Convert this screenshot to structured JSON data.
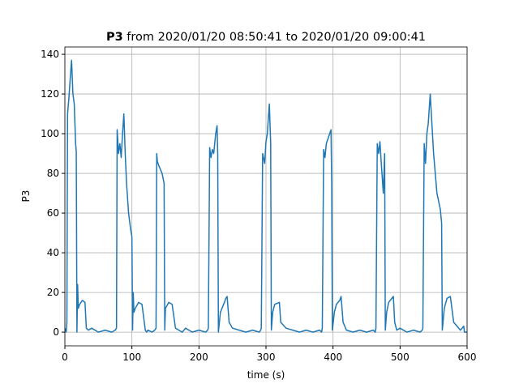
{
  "chart_data": {
    "type": "line",
    "title_label": "P3",
    "title": "from 2020/01/20 08:50:41 to 2020/01/20 09:00:41",
    "x_label": "time (s)",
    "y_label": "P3",
    "grid": true,
    "xlim": [
      0,
      600
    ],
    "xticks": [
      0,
      100,
      200,
      300,
      400,
      500,
      600
    ],
    "ylim": [
      -6.9,
      143.7
    ],
    "yticks": [
      0,
      20,
      40,
      60,
      80,
      100,
      120,
      140
    ],
    "series": [
      {
        "color": "#1f77b4",
        "x": [
          0,
          2,
          3,
          4,
          6,
          8,
          10,
          12,
          14,
          16,
          17,
          18,
          19,
          20,
          22,
          26,
          30,
          32,
          35,
          40,
          50,
          60,
          70,
          75,
          77,
          78,
          80,
          82,
          84,
          86,
          88,
          90,
          92,
          95,
          98,
          100,
          101,
          102,
          103,
          105,
          110,
          115,
          120,
          122,
          124,
          130,
          134,
          136,
          137,
          138,
          140,
          145,
          148,
          149,
          150,
          155,
          160,
          165,
          170,
          175,
          180,
          185,
          190,
          200,
          210,
          213,
          214,
          216,
          218,
          220,
          222,
          225,
          227,
          228,
          229,
          232,
          238,
          240,
          242,
          245,
          250,
          260,
          270,
          280,
          290,
          292,
          293,
          295,
          298,
          300,
          302,
          305,
          307,
          308,
          310,
          313,
          320,
          322,
          330,
          340,
          350,
          360,
          370,
          380,
          383,
          384,
          386,
          388,
          390,
          393,
          395,
          397,
          398,
          399,
          402,
          405,
          410,
          412,
          415,
          420,
          430,
          440,
          450,
          460,
          463,
          464,
          466,
          468,
          470,
          472,
          475,
          477,
          478,
          480,
          483,
          490,
          492,
          495,
          500,
          510,
          520,
          530,
          533,
          534,
          536,
          538,
          540,
          542,
          545,
          550,
          555,
          560,
          562,
          563,
          566,
          570,
          575,
          580,
          590,
          595,
          596,
          600
        ],
        "values": [
          2,
          0,
          5,
          110,
          118,
          128,
          137,
          120,
          115,
          95,
          91,
          0,
          24,
          12,
          14,
          16,
          15,
          2,
          1,
          2,
          0,
          1,
          0,
          1,
          2,
          102,
          90,
          95,
          88,
          100,
          110,
          90,
          75,
          60,
          52,
          48,
          1,
          20,
          10,
          12,
          15,
          14,
          1,
          0,
          1,
          0,
          1,
          2,
          90,
          86,
          84,
          80,
          75,
          1,
          12,
          15,
          14,
          2,
          1,
          0,
          2,
          1,
          0,
          1,
          0,
          1,
          2,
          93,
          88,
          92,
          90,
          100,
          104,
          90,
          0,
          10,
          15,
          17,
          18,
          5,
          2,
          1,
          0,
          1,
          0,
          1,
          2,
          90,
          85,
          96,
          100,
          115,
          95,
          1,
          10,
          14,
          15,
          5,
          2,
          1,
          0,
          1,
          0,
          1,
          0,
          2,
          92,
          88,
          95,
          98,
          100,
          102,
          75,
          1,
          10,
          14,
          16,
          18,
          5,
          1,
          0,
          1,
          0,
          1,
          0,
          2,
          95,
          90,
          96,
          85,
          70,
          90,
          1,
          10,
          15,
          18,
          5,
          1,
          2,
          0,
          1,
          0,
          1,
          2,
          95,
          85,
          100,
          105,
          120,
          90,
          70,
          62,
          55,
          1,
          12,
          17,
          18,
          5,
          1,
          3,
          0,
          0
        ]
      }
    ]
  }
}
